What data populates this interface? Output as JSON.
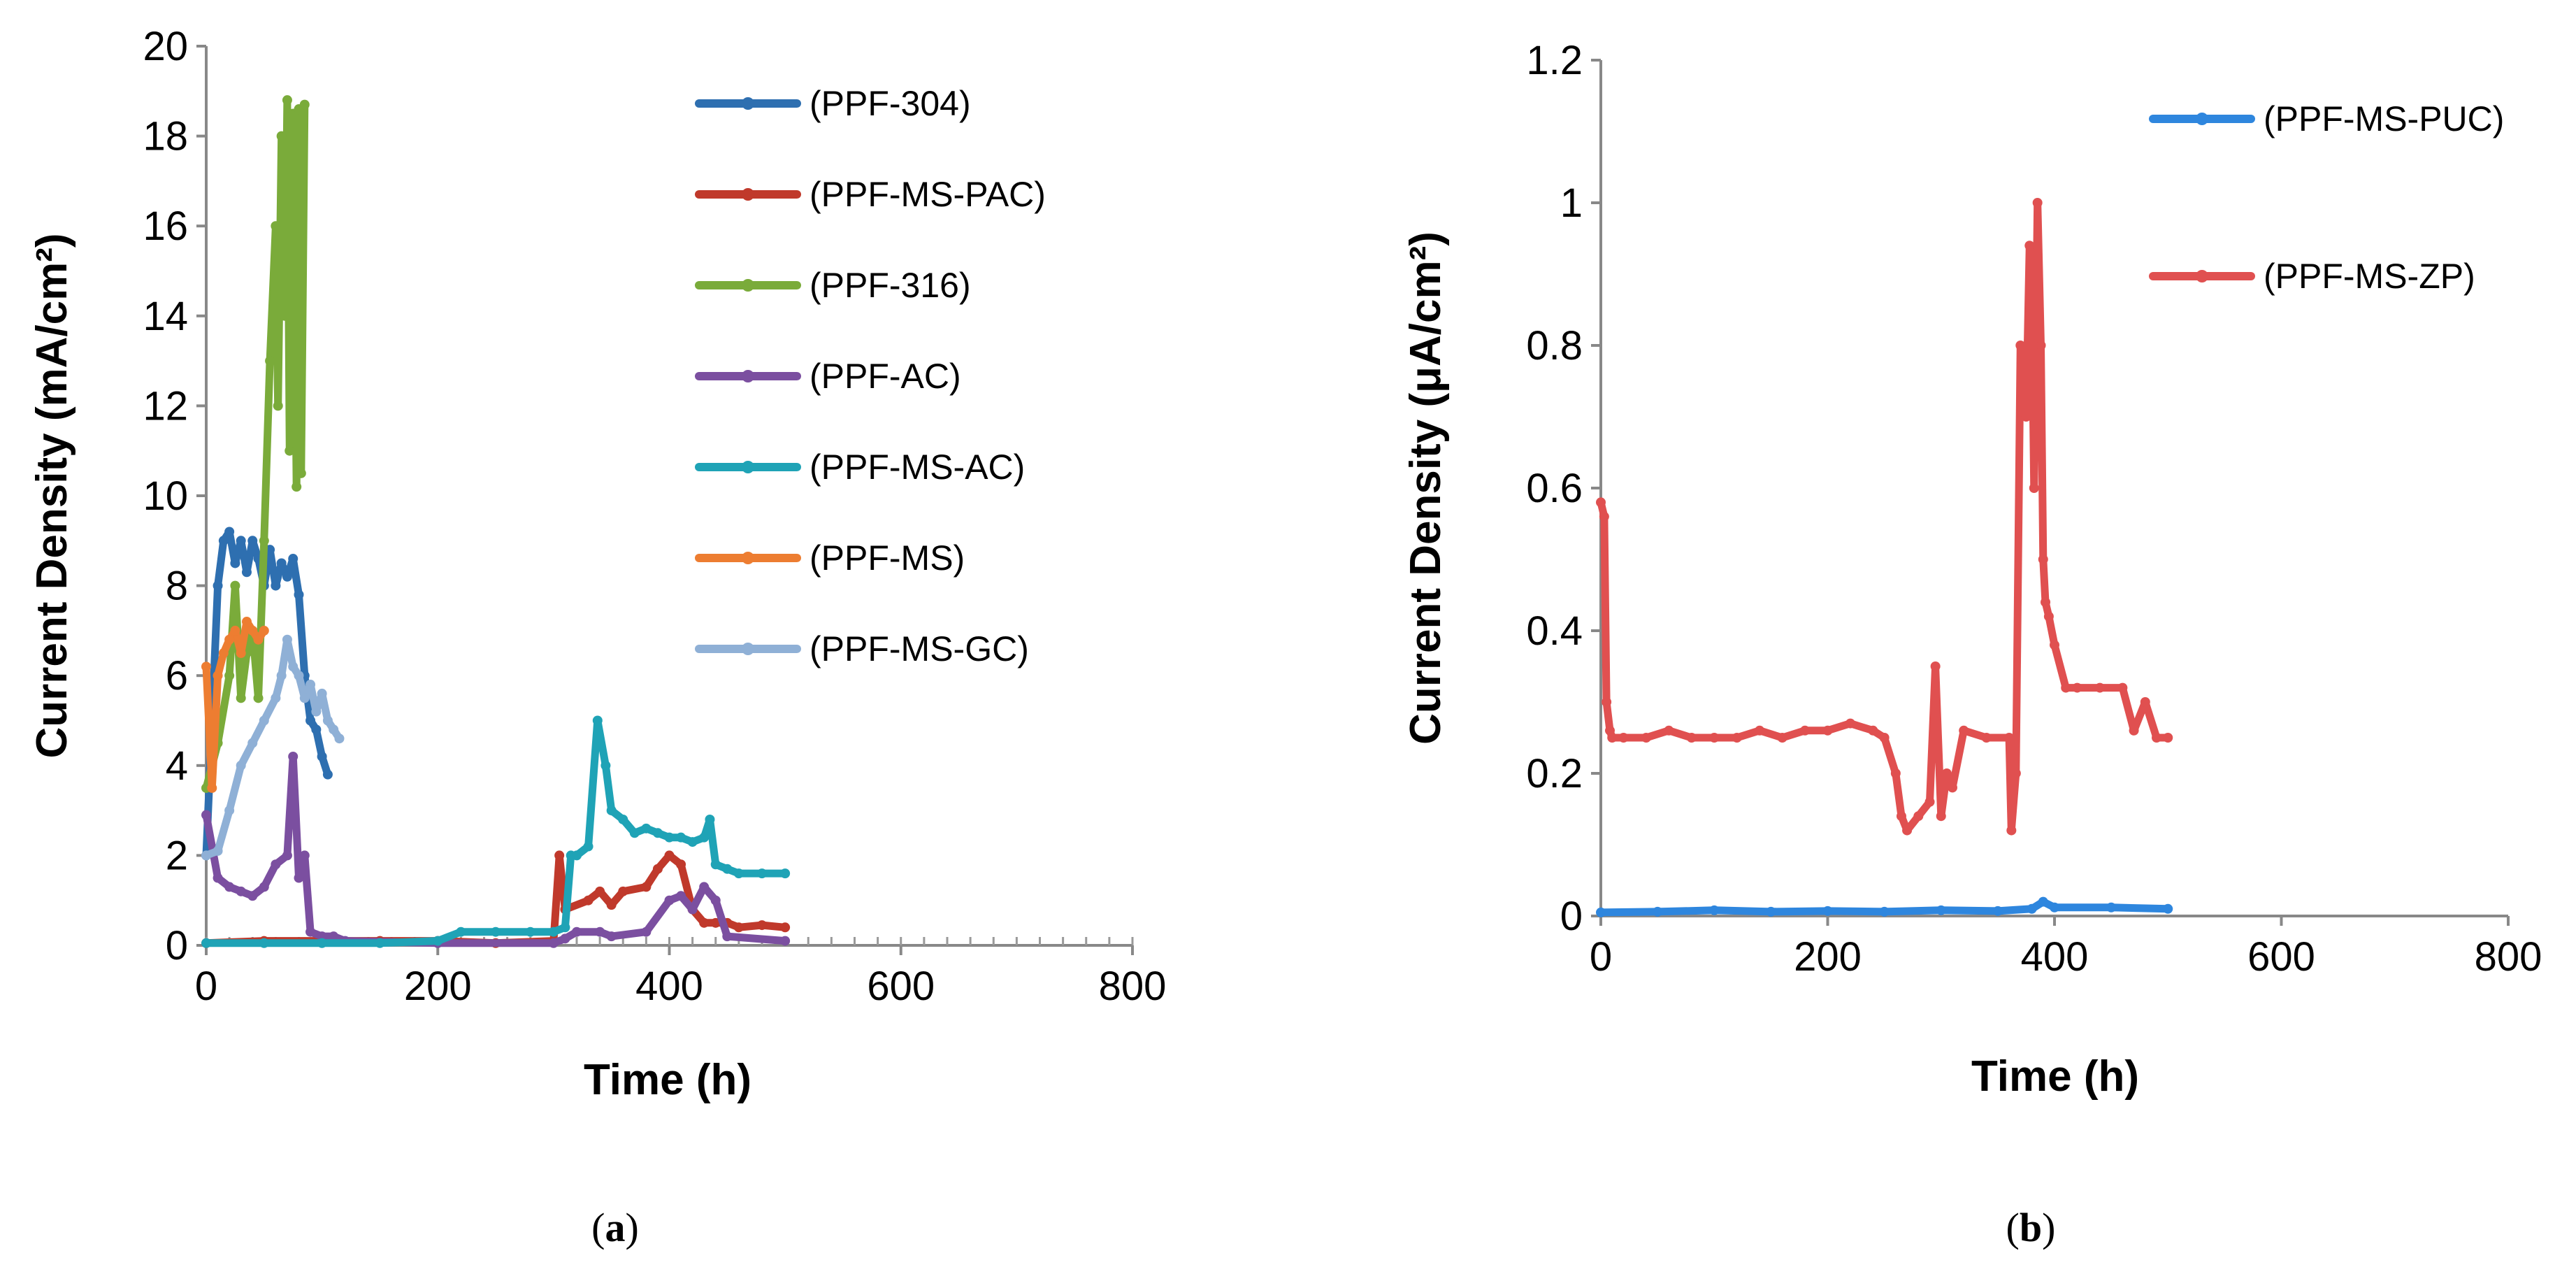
{
  "chart_data": [
    {
      "type": "line",
      "panel_label": "(a)",
      "panel_letter": "a",
      "xlabel": "Time (h)",
      "ylabel": "Current Density (mA/cm²)",
      "xlim": [
        0,
        800
      ],
      "ylim": [
        0,
        20
      ],
      "xticks": [
        "0",
        "200",
        "400",
        "600",
        "800"
      ],
      "yticks": [
        "0",
        "2",
        "4",
        "6",
        "8",
        "10",
        "12",
        "14",
        "16",
        "18",
        "20"
      ],
      "grid": false,
      "legend_position": "right",
      "series": [
        {
          "name": "(PPF-304)",
          "color": "#2e6fb0",
          "x": [
            0,
            10,
            15,
            20,
            25,
            30,
            35,
            40,
            45,
            50,
            55,
            60,
            65,
            70,
            75,
            80,
            85,
            90,
            95,
            100,
            105
          ],
          "y": [
            2.0,
            8.0,
            9.0,
            9.2,
            8.5,
            9.0,
            8.3,
            9.0,
            8.6,
            8.0,
            8.8,
            8.0,
            8.5,
            8.2,
            8.6,
            7.8,
            6.0,
            5.0,
            4.8,
            4.2,
            3.8
          ]
        },
        {
          "name": "(PPF-MS-PAC)",
          "color": "#c0392b",
          "x": [
            0,
            50,
            100,
            150,
            200,
            250,
            300,
            305,
            310,
            330,
            340,
            350,
            360,
            380,
            390,
            400,
            410,
            420,
            430,
            440,
            450,
            460,
            480,
            500
          ],
          "y": [
            0.05,
            0.1,
            0.1,
            0.1,
            0.1,
            0.05,
            0.1,
            2.0,
            0.8,
            1.0,
            1.2,
            0.9,
            1.2,
            1.3,
            1.7,
            2.0,
            1.8,
            0.8,
            0.5,
            0.5,
            0.5,
            0.4,
            0.45,
            0.4
          ]
        },
        {
          "name": "(PPF-316)",
          "color": "#7aab3a",
          "x": [
            0,
            10,
            20,
            25,
            30,
            35,
            40,
            45,
            50,
            55,
            60,
            62,
            65,
            68,
            70,
            72,
            75,
            78,
            80,
            82,
            85
          ],
          "y": [
            3.5,
            4.5,
            6.0,
            8.0,
            5.5,
            6.5,
            7.0,
            5.5,
            9.0,
            13.0,
            16.0,
            12.0,
            18.0,
            14.0,
            18.8,
            11.0,
            18.5,
            10.2,
            18.6,
            10.5,
            18.7
          ]
        },
        {
          "name": "(PPF-AC)",
          "color": "#7b4fa0",
          "x": [
            0,
            10,
            20,
            30,
            40,
            50,
            60,
            70,
            75,
            80,
            85,
            90,
            100,
            110,
            120,
            200,
            300,
            310,
            320,
            340,
            350,
            380,
            400,
            410,
            420,
            430,
            440,
            450,
            500
          ],
          "y": [
            2.9,
            1.5,
            1.3,
            1.2,
            1.1,
            1.3,
            1.8,
            2.0,
            4.2,
            1.5,
            2.0,
            0.3,
            0.2,
            0.2,
            0.1,
            0.05,
            0.05,
            0.15,
            0.3,
            0.3,
            0.2,
            0.3,
            1.0,
            1.1,
            0.8,
            1.3,
            1.0,
            0.2,
            0.1
          ]
        },
        {
          "name": "(PPF-MS-AC)",
          "color": "#1fa3b6",
          "x": [
            0,
            50,
            100,
            150,
            200,
            220,
            250,
            280,
            300,
            310,
            315,
            320,
            330,
            338,
            345,
            350,
            360,
            370,
            380,
            390,
            400,
            410,
            420,
            430,
            435,
            440,
            450,
            460,
            480,
            500
          ],
          "y": [
            0.05,
            0.05,
            0.05,
            0.05,
            0.1,
            0.3,
            0.3,
            0.3,
            0.3,
            0.4,
            2.0,
            2.0,
            2.2,
            5.0,
            4.0,
            3.0,
            2.8,
            2.5,
            2.6,
            2.5,
            2.4,
            2.4,
            2.3,
            2.4,
            2.8,
            1.8,
            1.7,
            1.6,
            1.6,
            1.6
          ]
        },
        {
          "name": "(PPF-MS)",
          "color": "#ed7d31",
          "x": [
            0,
            5,
            10,
            15,
            20,
            25,
            30,
            35,
            40,
            45,
            50
          ],
          "y": [
            6.2,
            3.5,
            6.0,
            6.5,
            6.8,
            7.0,
            6.5,
            7.2,
            7.0,
            6.8,
            7.0
          ]
        },
        {
          "name": "(PPF-MS-GC)",
          "color": "#8fb0d6",
          "x": [
            0,
            10,
            20,
            30,
            40,
            50,
            60,
            65,
            70,
            75,
            80,
            85,
            90,
            95,
            100,
            105,
            110,
            115
          ],
          "y": [
            2.0,
            2.1,
            3.0,
            4.0,
            4.5,
            5.0,
            5.5,
            6.0,
            6.8,
            6.2,
            6.0,
            5.5,
            5.8,
            5.2,
            5.6,
            5.0,
            4.8,
            4.6
          ]
        }
      ]
    },
    {
      "type": "line",
      "panel_label": "(b)",
      "panel_letter": "b",
      "xlabel": "Time (h)",
      "ylabel": "Current Density (μA/cm²)",
      "xlim": [
        0,
        800
      ],
      "ylim": [
        0,
        1.2
      ],
      "xticks": [
        "0",
        "200",
        "400",
        "600",
        "800"
      ],
      "yticks": [
        "0",
        "0.2",
        "0.4",
        "0.6",
        "0.8",
        "1",
        "1.2"
      ],
      "grid": false,
      "legend_position": "right",
      "series": [
        {
          "name": "(PPF-MS-PUC)",
          "color": "#2e86de",
          "x": [
            0,
            50,
            100,
            150,
            200,
            250,
            300,
            350,
            380,
            390,
            400,
            450,
            500
          ],
          "y": [
            0.005,
            0.006,
            0.008,
            0.006,
            0.007,
            0.006,
            0.008,
            0.007,
            0.01,
            0.02,
            0.012,
            0.012,
            0.01
          ]
        },
        {
          "name": "(PPF-MS-ZP)",
          "color": "#e05050",
          "x": [
            0,
            3,
            5,
            8,
            10,
            20,
            40,
            60,
            80,
            100,
            120,
            140,
            160,
            180,
            200,
            220,
            240,
            250,
            260,
            265,
            270,
            280,
            290,
            295,
            300,
            305,
            310,
            320,
            340,
            360,
            362,
            366,
            370,
            375,
            378,
            380,
            382,
            385,
            388,
            390,
            392,
            395,
            400,
            410,
            420,
            440,
            460,
            470,
            480,
            490,
            500
          ],
          "y": [
            0.58,
            0.56,
            0.3,
            0.26,
            0.25,
            0.25,
            0.25,
            0.26,
            0.25,
            0.25,
            0.25,
            0.26,
            0.25,
            0.26,
            0.26,
            0.27,
            0.26,
            0.25,
            0.2,
            0.14,
            0.12,
            0.14,
            0.16,
            0.35,
            0.14,
            0.2,
            0.18,
            0.26,
            0.25,
            0.25,
            0.12,
            0.2,
            0.8,
            0.7,
            0.94,
            0.85,
            0.6,
            1.0,
            0.8,
            0.5,
            0.44,
            0.42,
            0.38,
            0.32,
            0.32,
            0.32,
            0.32,
            0.26,
            0.3,
            0.25,
            0.25
          ]
        }
      ]
    }
  ]
}
